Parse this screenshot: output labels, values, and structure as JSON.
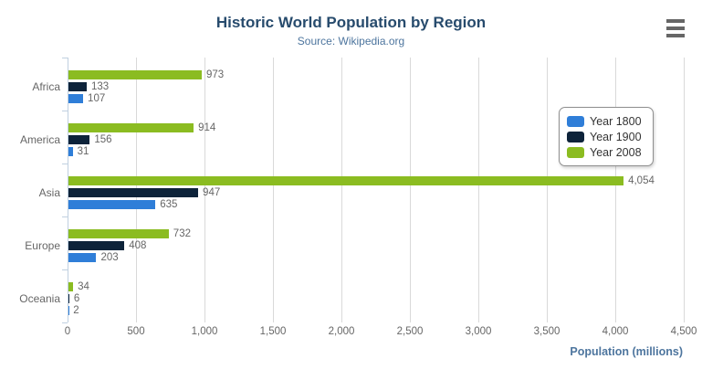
{
  "chart_data": {
    "type": "bar",
    "title": "Historic World Population by Region",
    "subtitle": "Source: Wikipedia.org",
    "categories": [
      "Africa",
      "America",
      "Asia",
      "Europe",
      "Oceania"
    ],
    "series": [
      {
        "name": "Year 1800",
        "color": "#2f7ed8",
        "values": [
          107,
          31,
          635,
          203,
          2
        ],
        "labels": [
          "107",
          "31",
          "635",
          "203",
          "2"
        ]
      },
      {
        "name": "Year 1900",
        "color": "#0d233a",
        "values": [
          133,
          156,
          947,
          408,
          6
        ],
        "labels": [
          "133",
          "156",
          "947",
          "408",
          "6"
        ]
      },
      {
        "name": "Year 2008",
        "color": "#8bbc21",
        "values": [
          973,
          914,
          4054,
          732,
          34
        ],
        "labels": [
          "973",
          "914",
          "4,054",
          "732",
          "34"
        ]
      }
    ],
    "bar_row_order_top_to_bottom": [
      "Year 2008",
      "Year 1900",
      "Year 1800"
    ],
    "xlabel": "Population (millions)",
    "xlim": [
      0,
      4500
    ],
    "tick_labels": [
      "0",
      "500",
      "1,000",
      "1,500",
      "2,000",
      "2,500",
      "3,000",
      "3,500",
      "4,000",
      "4,500"
    ],
    "grid": true,
    "data_labels": true,
    "legend_position": "right-overlay"
  },
  "icons": {
    "context_menu": "hamburger-icon"
  },
  "colors": {
    "title": "#274b6d",
    "subtitle": "#4d759e",
    "axis_title": "#4d759e",
    "text_labels": "#666666",
    "gridline": "#d9d9d9",
    "axis_line": "#c0d0e0",
    "legend_border": "#8f8f8f",
    "menu_icon": "#666666",
    "background": "#ffffff"
  }
}
